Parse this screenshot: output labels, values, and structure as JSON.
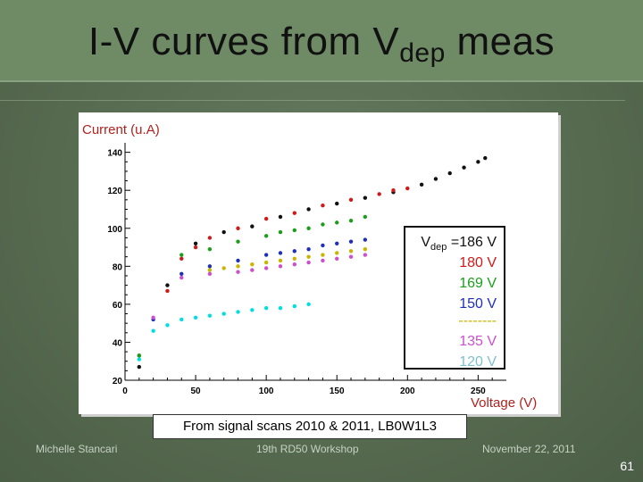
{
  "slide": {
    "title_main": "I-V curves from V",
    "title_sub": "dep",
    "title_end": " meas",
    "caption": "From signal scans 2010 & 2011, LB0W1L3",
    "footer_left": "Michelle Stancari",
    "footer_mid": "19th  RD50  Workshop",
    "footer_right": "November 22, 2011",
    "page_number": "61"
  },
  "chart_data": {
    "type": "scatter",
    "ylabel": "Current (u.A)",
    "xlabel": "Voltage (V)",
    "xlim": [
      0,
      270
    ],
    "ylim": [
      20,
      145
    ],
    "x_ticks": [
      "0",
      "50",
      "100",
      "150",
      "200",
      "250"
    ],
    "y_ticks": [
      "20",
      "40",
      "60",
      "80",
      "100",
      "120",
      "140"
    ],
    "legend": {
      "vdep_prefix": "V",
      "vdep_sub": "dep",
      "entries": [
        "=186 V",
        "180 V",
        "169 V",
        "150 V",
        "--------",
        "135 V",
        "120 V"
      ]
    },
    "series": [
      {
        "label": "=186 V",
        "color": "#111111",
        "points": [
          [
            10,
            27
          ],
          [
            30,
            70
          ],
          [
            50,
            92
          ],
          [
            70,
            98
          ],
          [
            90,
            101
          ],
          [
            110,
            106
          ],
          [
            130,
            110
          ],
          [
            150,
            113
          ],
          [
            170,
            116
          ],
          [
            190,
            119
          ],
          [
            210,
            123
          ],
          [
            220,
            126
          ],
          [
            230,
            129
          ],
          [
            240,
            132
          ],
          [
            250,
            135
          ],
          [
            255,
            137
          ]
        ]
      },
      {
        "label": "180 V",
        "color": "#d11919",
        "points": [
          [
            10,
            33
          ],
          [
            30,
            67
          ],
          [
            40,
            84
          ],
          [
            50,
            90
          ],
          [
            60,
            95
          ],
          [
            80,
            100
          ],
          [
            100,
            105
          ],
          [
            120,
            108
          ],
          [
            140,
            112
          ],
          [
            160,
            115
          ],
          [
            180,
            118
          ],
          [
            190,
            120
          ],
          [
            200,
            121
          ]
        ]
      },
      {
        "label": "169 V",
        "color": "#1a9e1a",
        "points": [
          [
            10,
            33
          ],
          [
            40,
            86
          ],
          [
            60,
            89
          ],
          [
            80,
            93
          ],
          [
            100,
            96
          ],
          [
            110,
            98
          ],
          [
            120,
            99
          ],
          [
            130,
            100
          ],
          [
            140,
            102
          ],
          [
            150,
            103
          ],
          [
            160,
            104
          ],
          [
            170,
            106
          ]
        ]
      },
      {
        "label": "150 V",
        "color": "#1f2fb8",
        "points": [
          [
            20,
            52
          ],
          [
            40,
            76
          ],
          [
            60,
            80
          ],
          [
            80,
            83
          ],
          [
            100,
            86
          ],
          [
            110,
            87
          ],
          [
            120,
            88
          ],
          [
            130,
            89
          ],
          [
            140,
            91
          ],
          [
            150,
            92
          ],
          [
            160,
            93
          ],
          [
            170,
            94
          ]
        ]
      },
      {
        "label": "--------",
        "color": "#c9b400",
        "points": [
          [
            60,
            78
          ],
          [
            70,
            79
          ],
          [
            80,
            80
          ],
          [
            90,
            81
          ],
          [
            100,
            82
          ],
          [
            110,
            83
          ],
          [
            120,
            84
          ],
          [
            130,
            85
          ],
          [
            140,
            86
          ],
          [
            150,
            87
          ],
          [
            160,
            88
          ],
          [
            170,
            89
          ]
        ]
      },
      {
        "label": "135 V",
        "color": "#cc4fcc",
        "points": [
          [
            20,
            53
          ],
          [
            40,
            74
          ],
          [
            60,
            76
          ],
          [
            80,
            77
          ],
          [
            90,
            78
          ],
          [
            100,
            79
          ],
          [
            110,
            80
          ],
          [
            120,
            81
          ],
          [
            130,
            82
          ],
          [
            140,
            83
          ],
          [
            150,
            84
          ],
          [
            160,
            85
          ],
          [
            170,
            86
          ]
        ]
      },
      {
        "label": "120 V",
        "color": "#00dfe0",
        "points": [
          [
            10,
            31
          ],
          [
            20,
            46
          ],
          [
            30,
            49
          ],
          [
            40,
            52
          ],
          [
            50,
            53
          ],
          [
            60,
            54
          ],
          [
            70,
            55
          ],
          [
            80,
            56
          ],
          [
            90,
            57
          ],
          [
            100,
            58
          ],
          [
            110,
            58
          ],
          [
            120,
            59
          ],
          [
            130,
            60
          ]
        ]
      }
    ]
  }
}
